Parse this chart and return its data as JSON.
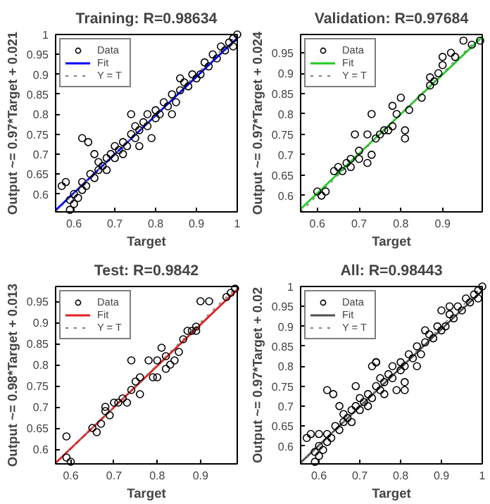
{
  "chart_data": [
    {
      "type": "scatter",
      "title": "Training: R=0.98634",
      "xlabel": "Target",
      "ylabel": "Output ~= 0.97*Target + 0.021",
      "xlim": [
        0.555,
        1.0
      ],
      "ylim": [
        0.555,
        1.0
      ],
      "xticks": [
        0.6,
        0.7,
        0.8,
        0.9,
        1
      ],
      "yticks": [
        0.6,
        0.65,
        0.7,
        0.75,
        0.8,
        0.85,
        0.9,
        0.95,
        1
      ],
      "grid": false,
      "legend": "top left",
      "series": [
        {
          "name": "Data",
          "marker": "circle",
          "color": "#000000",
          "x": [
            0.57,
            0.58,
            0.59,
            0.6,
            0.59,
            0.6,
            0.61,
            0.62,
            0.63,
            0.62,
            0.64,
            0.65,
            0.66,
            0.66,
            0.67,
            0.68,
            0.68,
            0.69,
            0.7,
            0.7,
            0.71,
            0.72,
            0.72,
            0.73,
            0.74,
            0.75,
            0.75,
            0.76,
            0.77,
            0.78,
            0.78,
            0.79,
            0.8,
            0.8,
            0.81,
            0.82,
            0.83,
            0.84,
            0.85,
            0.86,
            0.86,
            0.87,
            0.88,
            0.89,
            0.9,
            0.91,
            0.92,
            0.93,
            0.94,
            0.95,
            0.96,
            0.97,
            0.98,
            0.99,
            1.0,
            0.99,
            0.62,
            0.635,
            0.65,
            0.74,
            0.76,
            0.84
          ],
          "values": [
            0.62,
            0.63,
            0.585,
            0.6,
            0.56,
            0.575,
            0.59,
            0.63,
            0.62,
            0.61,
            0.65,
            0.64,
            0.66,
            0.68,
            0.67,
            0.69,
            0.66,
            0.7,
            0.69,
            0.72,
            0.71,
            0.73,
            0.7,
            0.72,
            0.75,
            0.74,
            0.77,
            0.76,
            0.78,
            0.77,
            0.8,
            0.74,
            0.81,
            0.79,
            0.8,
            0.83,
            0.82,
            0.85,
            0.83,
            0.89,
            0.86,
            0.88,
            0.87,
            0.9,
            0.89,
            0.9,
            0.93,
            0.92,
            0.95,
            0.94,
            0.97,
            0.96,
            0.98,
            0.99,
            1.0,
            0.97,
            0.74,
            0.73,
            0.7,
            0.8,
            0.72,
            0.8
          ]
        },
        {
          "name": "Fit",
          "type": "line",
          "marker": "none",
          "color": "#0000ff",
          "line_style": "solid",
          "x": [
            0.555,
            1.0
          ],
          "values": [
            0.559,
            0.991
          ]
        },
        {
          "name": "Y = T",
          "type": "line",
          "marker": "none",
          "color": "#808080",
          "line_style": "dotted",
          "x": [
            0.555,
            1.0
          ],
          "values": [
            0.555,
            1.0
          ]
        }
      ]
    },
    {
      "type": "scatter",
      "title": "Validation: R=0.97684",
      "xlabel": "Target",
      "ylabel": "Output ~= 0.97*Target + 0.024",
      "xlim": [
        0.56,
        0.995
      ],
      "ylim": [
        0.56,
        0.995
      ],
      "xticks": [
        0.6,
        0.7,
        0.8,
        0.9
      ],
      "yticks": [
        0.6,
        0.65,
        0.7,
        0.75,
        0.8,
        0.85,
        0.9,
        0.95
      ],
      "grid": false,
      "legend": "top left",
      "series": [
        {
          "name": "Data",
          "marker": "circle",
          "color": "#000000",
          "x": [
            0.6,
            0.61,
            0.62,
            0.64,
            0.65,
            0.66,
            0.67,
            0.68,
            0.68,
            0.69,
            0.7,
            0.7,
            0.72,
            0.72,
            0.73,
            0.73,
            0.74,
            0.75,
            0.76,
            0.77,
            0.78,
            0.78,
            0.79,
            0.8,
            0.81,
            0.81,
            0.82,
            0.85,
            0.87,
            0.87,
            0.88,
            0.89,
            0.9,
            0.9,
            0.92,
            0.93,
            0.95,
            0.97,
            0.99
          ],
          "values": [
            0.61,
            0.6,
            0.61,
            0.66,
            0.67,
            0.66,
            0.68,
            0.69,
            0.67,
            0.75,
            0.71,
            0.69,
            0.75,
            0.68,
            0.7,
            0.8,
            0.74,
            0.75,
            0.76,
            0.76,
            0.77,
            0.82,
            0.8,
            0.84,
            0.76,
            0.74,
            0.81,
            0.84,
            0.87,
            0.89,
            0.88,
            0.9,
            0.92,
            0.94,
            0.95,
            0.94,
            0.98,
            0.97,
            0.98
          ]
        },
        {
          "name": "Fit",
          "type": "line",
          "marker": "none",
          "color": "#22cc22",
          "line_style": "solid",
          "x": [
            0.56,
            0.995
          ],
          "values": [
            0.567,
            0.989
          ]
        },
        {
          "name": "Y = T",
          "type": "line",
          "marker": "none",
          "color": "#808080",
          "line_style": "dotted",
          "x": [
            0.56,
            0.995
          ],
          "values": [
            0.56,
            0.995
          ]
        }
      ]
    },
    {
      "type": "scatter",
      "title": "Test: R=0.9842",
      "xlabel": "Target",
      "ylabel": "Output ~= 0.98*Target + 0.013",
      "xlim": [
        0.565,
        0.985
      ],
      "ylim": [
        0.565,
        0.985
      ],
      "xticks": [
        0.6,
        0.7,
        0.8,
        0.9
      ],
      "yticks": [
        0.6,
        0.65,
        0.7,
        0.75,
        0.8,
        0.85,
        0.9,
        0.95
      ],
      "grid": false,
      "legend": "top left",
      "series": [
        {
          "name": "Data",
          "marker": "circle",
          "color": "#000000",
          "x": [
            0.59,
            0.59,
            0.6,
            0.65,
            0.66,
            0.67,
            0.68,
            0.68,
            0.69,
            0.7,
            0.71,
            0.72,
            0.73,
            0.74,
            0.74,
            0.75,
            0.76,
            0.76,
            0.78,
            0.79,
            0.8,
            0.8,
            0.81,
            0.82,
            0.82,
            0.83,
            0.84,
            0.85,
            0.86,
            0.87,
            0.88,
            0.89,
            0.89,
            0.9,
            0.92,
            0.96,
            0.97,
            0.98
          ],
          "values": [
            0.63,
            0.58,
            0.57,
            0.65,
            0.64,
            0.66,
            0.69,
            0.7,
            0.68,
            0.71,
            0.71,
            0.72,
            0.71,
            0.74,
            0.81,
            0.76,
            0.73,
            0.77,
            0.81,
            0.77,
            0.77,
            0.81,
            0.84,
            0.82,
            0.79,
            0.8,
            0.81,
            0.83,
            0.86,
            0.88,
            0.88,
            0.88,
            0.89,
            0.95,
            0.95,
            0.96,
            0.97,
            0.98
          ]
        },
        {
          "name": "Fit",
          "type": "line",
          "marker": "none",
          "color": "#e02020",
          "line_style": "solid",
          "x": [
            0.565,
            0.985
          ],
          "values": [
            0.567,
            0.978
          ]
        },
        {
          "name": "Y = T",
          "type": "line",
          "marker": "none",
          "color": "#808080",
          "line_style": "dotted",
          "x": [
            0.565,
            0.985
          ],
          "values": [
            0.565,
            0.985
          ]
        }
      ]
    },
    {
      "type": "scatter",
      "title": "All: R=0.98443",
      "xlabel": "Target",
      "ylabel": "Output ~= 0.97*Target + 0.02",
      "xlim": [
        0.555,
        1.0
      ],
      "ylim": [
        0.555,
        1.0
      ],
      "xticks": [
        0.6,
        0.7,
        0.8,
        0.9,
        1
      ],
      "yticks": [
        0.6,
        0.65,
        0.7,
        0.75,
        0.8,
        0.85,
        0.9,
        0.95,
        1
      ],
      "grid": false,
      "legend": "top left",
      "series": [
        {
          "name": "Data",
          "marker": "circle",
          "color": "#000000",
          "x": [
            0.57,
            0.58,
            0.59,
            0.6,
            0.59,
            0.6,
            0.61,
            0.62,
            0.63,
            0.62,
            0.64,
            0.65,
            0.66,
            0.66,
            0.67,
            0.68,
            0.68,
            0.69,
            0.7,
            0.7,
            0.71,
            0.72,
            0.72,
            0.73,
            0.74,
            0.75,
            0.75,
            0.76,
            0.77,
            0.78,
            0.78,
            0.79,
            0.8,
            0.8,
            0.81,
            0.82,
            0.83,
            0.84,
            0.85,
            0.86,
            0.86,
            0.87,
            0.88,
            0.89,
            0.9,
            0.91,
            0.92,
            0.93,
            0.94,
            0.95,
            0.96,
            0.97,
            0.98,
            0.99,
            1.0,
            0.99,
            0.62,
            0.635,
            0.65,
            0.69,
            0.73,
            0.74,
            0.76,
            0.81,
            0.81,
            0.84,
            0.9,
            0.92,
            0.6,
            0.74
          ],
          "values": [
            0.62,
            0.63,
            0.585,
            0.6,
            0.56,
            0.575,
            0.59,
            0.63,
            0.62,
            0.61,
            0.65,
            0.64,
            0.66,
            0.68,
            0.67,
            0.69,
            0.66,
            0.7,
            0.69,
            0.72,
            0.71,
            0.73,
            0.7,
            0.72,
            0.75,
            0.74,
            0.77,
            0.76,
            0.78,
            0.77,
            0.8,
            0.74,
            0.81,
            0.79,
            0.8,
            0.83,
            0.82,
            0.85,
            0.83,
            0.89,
            0.86,
            0.88,
            0.87,
            0.9,
            0.89,
            0.9,
            0.93,
            0.92,
            0.95,
            0.94,
            0.97,
            0.96,
            0.98,
            0.99,
            1.0,
            0.97,
            0.74,
            0.73,
            0.7,
            0.75,
            0.8,
            0.81,
            0.73,
            0.76,
            0.74,
            0.8,
            0.94,
            0.95,
            0.63,
            0.81
          ]
        },
        {
          "name": "Fit",
          "type": "line",
          "marker": "none",
          "color": "#505050",
          "line_style": "solid",
          "x": [
            0.555,
            1.0
          ],
          "values": [
            0.558,
            0.99
          ]
        },
        {
          "name": "Y = T",
          "type": "line",
          "marker": "none",
          "color": "#808080",
          "line_style": "dotted",
          "x": [
            0.555,
            1.0
          ],
          "values": [
            0.555,
            1.0
          ]
        }
      ]
    }
  ]
}
